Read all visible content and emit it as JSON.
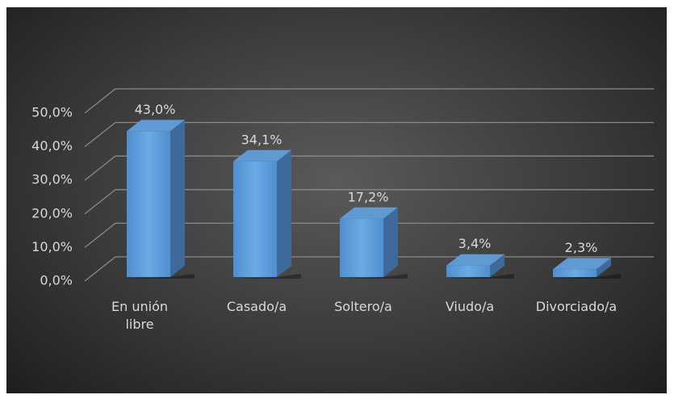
{
  "chart_data": {
    "type": "bar3d",
    "categories": [
      "En unión libre",
      "Casado/a",
      "Soltero/a",
      "Viudo/a",
      "Divorciado/a"
    ],
    "values": [
      43.0,
      34.1,
      17.2,
      3.4,
      2.3
    ],
    "value_labels": [
      "43,0%",
      "34,1%",
      "17,2%",
      "3,4%",
      "2,3%"
    ],
    "color": "#5b9bd5",
    "ylim": [
      0,
      50
    ],
    "yticks": [
      {
        "value": 0,
        "label": "0,0%"
      },
      {
        "value": 10,
        "label": "10,0%"
      },
      {
        "value": 20,
        "label": "20,0%"
      },
      {
        "value": 30,
        "label": "30,0%"
      },
      {
        "value": 40,
        "label": "40,0%"
      },
      {
        "value": 50,
        "label": "50,0%"
      }
    ],
    "grid": true
  }
}
